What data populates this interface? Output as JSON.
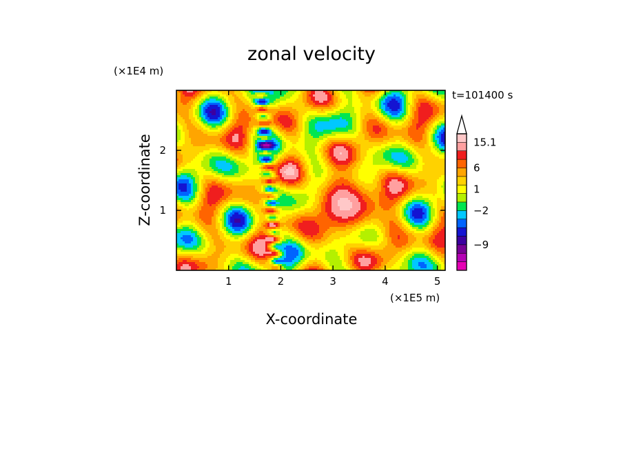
{
  "chart_data": {
    "type": "heatmap",
    "title": "zonal velocity",
    "xlabel": "X-coordinate",
    "ylabel": "Z-coordinate",
    "x_unit": "(×1E5 m)",
    "y_unit": "(×1E4 m)",
    "time_label": "t=101400 s",
    "xlim": [
      0,
      5.15
    ],
    "ylim": [
      0,
      3.0
    ],
    "x_ticks": [
      1,
      2,
      3,
      4,
      5
    ],
    "y_ticks": [
      1,
      2
    ],
    "grid": false,
    "colorbar": {
      "extend_max": true,
      "levels": [
        {
          "color": "#e600b4"
        },
        {
          "color": "#b400b4"
        },
        {
          "color": "#780096"
        },
        {
          "color": "#3c00a0"
        },
        {
          "color": "#1414d2"
        },
        {
          "color": "#0064ff"
        },
        {
          "color": "#00c8ff"
        },
        {
          "color": "#00e650"
        },
        {
          "color": "#b4f000"
        },
        {
          "color": "#ffff00"
        },
        {
          "color": "#ffd200"
        },
        {
          "color": "#ffa500"
        },
        {
          "color": "#ff6400"
        },
        {
          "color": "#f01e1e"
        },
        {
          "color": "#ffa0a0"
        },
        {
          "color": "#ffc8c8"
        }
      ],
      "labels": [
        {
          "text": "15.1",
          "at": 15
        },
        {
          "text": "6",
          "at": 12
        },
        {
          "text": "1",
          "at": 9.5
        },
        {
          "text": "−2",
          "at": 7
        },
        {
          "text": "−9",
          "at": 3
        }
      ]
    }
  }
}
